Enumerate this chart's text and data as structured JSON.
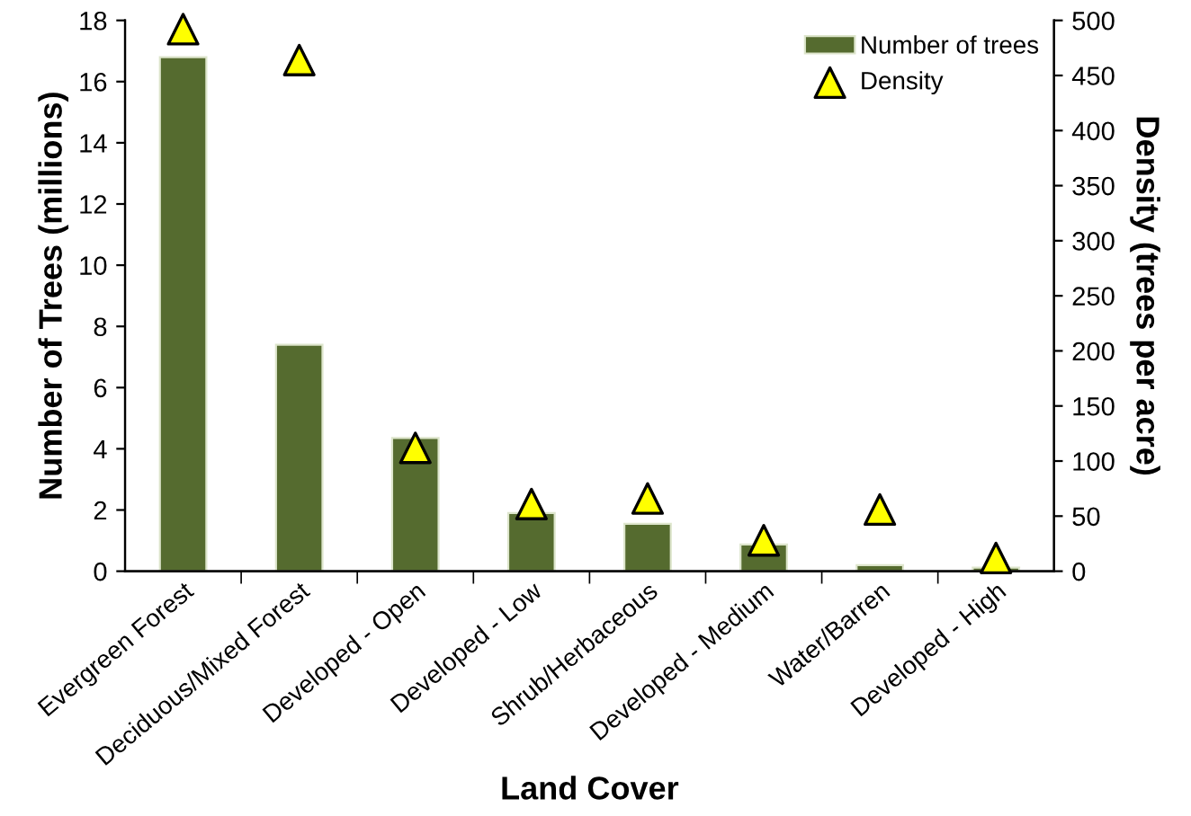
{
  "chart_data": {
    "type": "bar",
    "categories": [
      "Evergreen Forest",
      "Deciduous/Mixed Forest",
      "Developed - Open",
      "Developed - Low",
      "Shrub/Herbaceous",
      "Developed - Medium",
      "Water/Barren",
      "Developed - High"
    ],
    "series": [
      {
        "name": "Number of trees",
        "color": "#556b2f",
        "values": [
          16.8,
          7.4,
          4.35,
          1.9,
          1.55,
          0.87,
          0.2,
          0.12
        ]
      },
      {
        "name": "Density",
        "type": "scatter",
        "axis": "y2",
        "color": "#ffff00",
        "marker": "triangle",
        "values": [
          492,
          464,
          112,
          61,
          66,
          28,
          56,
          12
        ]
      }
    ],
    "xlabel": "Land Cover",
    "ylabel": "Number of Trees (millions)",
    "y2label": "Density (trees per acre)",
    "ylim": [
      0,
      18
    ],
    "yticks": [
      0,
      2,
      4,
      6,
      8,
      10,
      12,
      14,
      16,
      18
    ],
    "y2lim": [
      0,
      500
    ],
    "y2ticks": [
      0,
      50,
      100,
      150,
      200,
      250,
      300,
      350,
      400,
      450,
      500
    ],
    "grid": false,
    "legend": "top right"
  }
}
